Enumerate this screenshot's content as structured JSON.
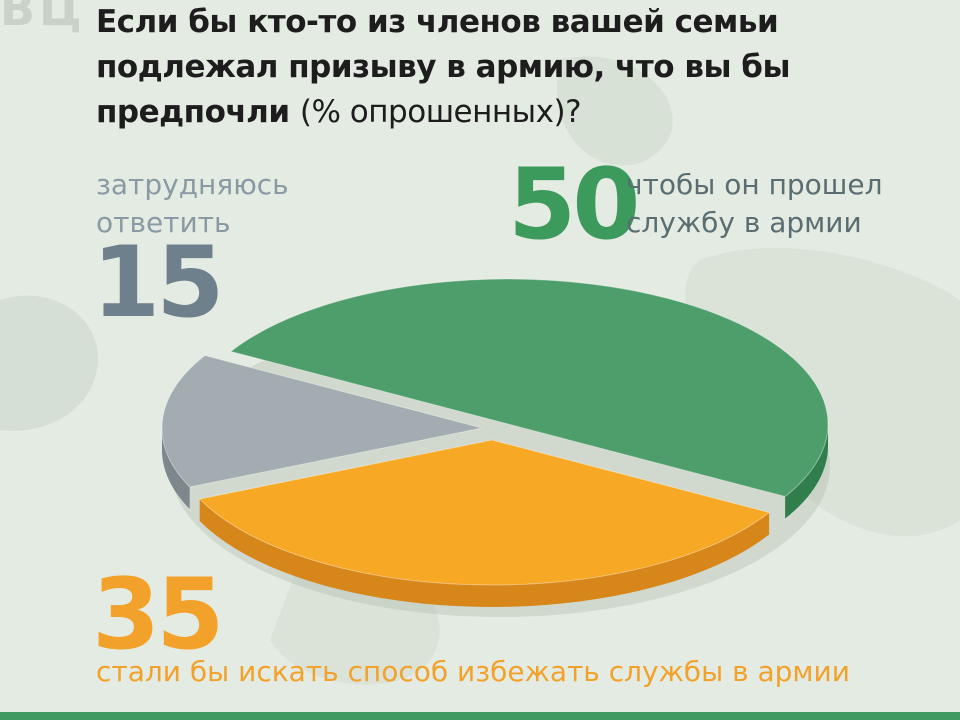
{
  "chart_data": {
    "type": "pie",
    "title": "Если бы кто-то из членов вашей семьи подлежал призыву в армию, что вы бы предпочли",
    "title_note": "(% опрошенных)?",
    "slices": [
      {
        "value": 50,
        "label": "чтобы он прошел службу в армии",
        "color": "#4d9e6b",
        "side_color": "#2f7e4c"
      },
      {
        "value": 35,
        "label": "стали бы искать способ избежать службы в армии",
        "color": "#f7a825",
        "side_color": "#d7861a"
      },
      {
        "value": 15,
        "label": "затрудняюсь ответить",
        "color": "#a3acb0",
        "side_color": "#7d878c"
      }
    ]
  },
  "decor_text": "ВЦ"
}
